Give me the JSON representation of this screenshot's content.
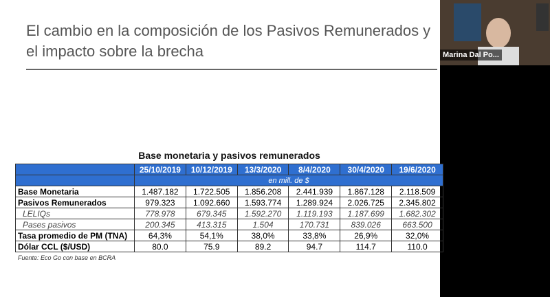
{
  "slide": {
    "title_lines": [
      "El cambio en la composición de los Pasivos Remunerados y",
      "el impacto sobre la brecha"
    ],
    "table": {
      "title": "Base monetaria y pasivos remunerados",
      "columns": [
        "25/10/2019",
        "10/12/2019",
        "13/3/2020",
        "8/4/2020",
        "30/4/2020",
        "19/6/2020"
      ],
      "unit": "en mill. de $",
      "rows": [
        {
          "label": "Base Monetaria",
          "values": [
            "1.487.182",
            "1.722.505",
            "1.856.208",
            "2.441.939",
            "1.867.128",
            "2.118.509"
          ]
        },
        {
          "label": "Pasivos Remunerados",
          "values": [
            "979.323",
            "1.092.660",
            "1.593.774",
            "1.289.924",
            "2.026.725",
            "2.345.802"
          ]
        },
        {
          "label": "LELIQs",
          "values": [
            "778.978",
            "679.345",
            "1.592.270",
            "1.119.193",
            "1.187.699",
            "1.682.302"
          ]
        },
        {
          "label": "Pases pasivos",
          "values": [
            "200.345",
            "413.315",
            "1.504",
            "170.731",
            "839.026",
            "663.500"
          ]
        },
        {
          "label": "Tasa promedio de PM (TNA)",
          "values": [
            "64,3%",
            "54,1%",
            "38,0%",
            "33,8%",
            "26,9%",
            "32,0%"
          ]
        },
        {
          "label": "Dólar CCL ($/USD)",
          "values": [
            "80.0",
            "75.9",
            "89.2",
            "94.7",
            "114.7",
            "110.0"
          ]
        }
      ]
    },
    "source": "Fuente: Eco Go con base en BCRA"
  },
  "participant": {
    "name": "Marina Dal Po..."
  }
}
